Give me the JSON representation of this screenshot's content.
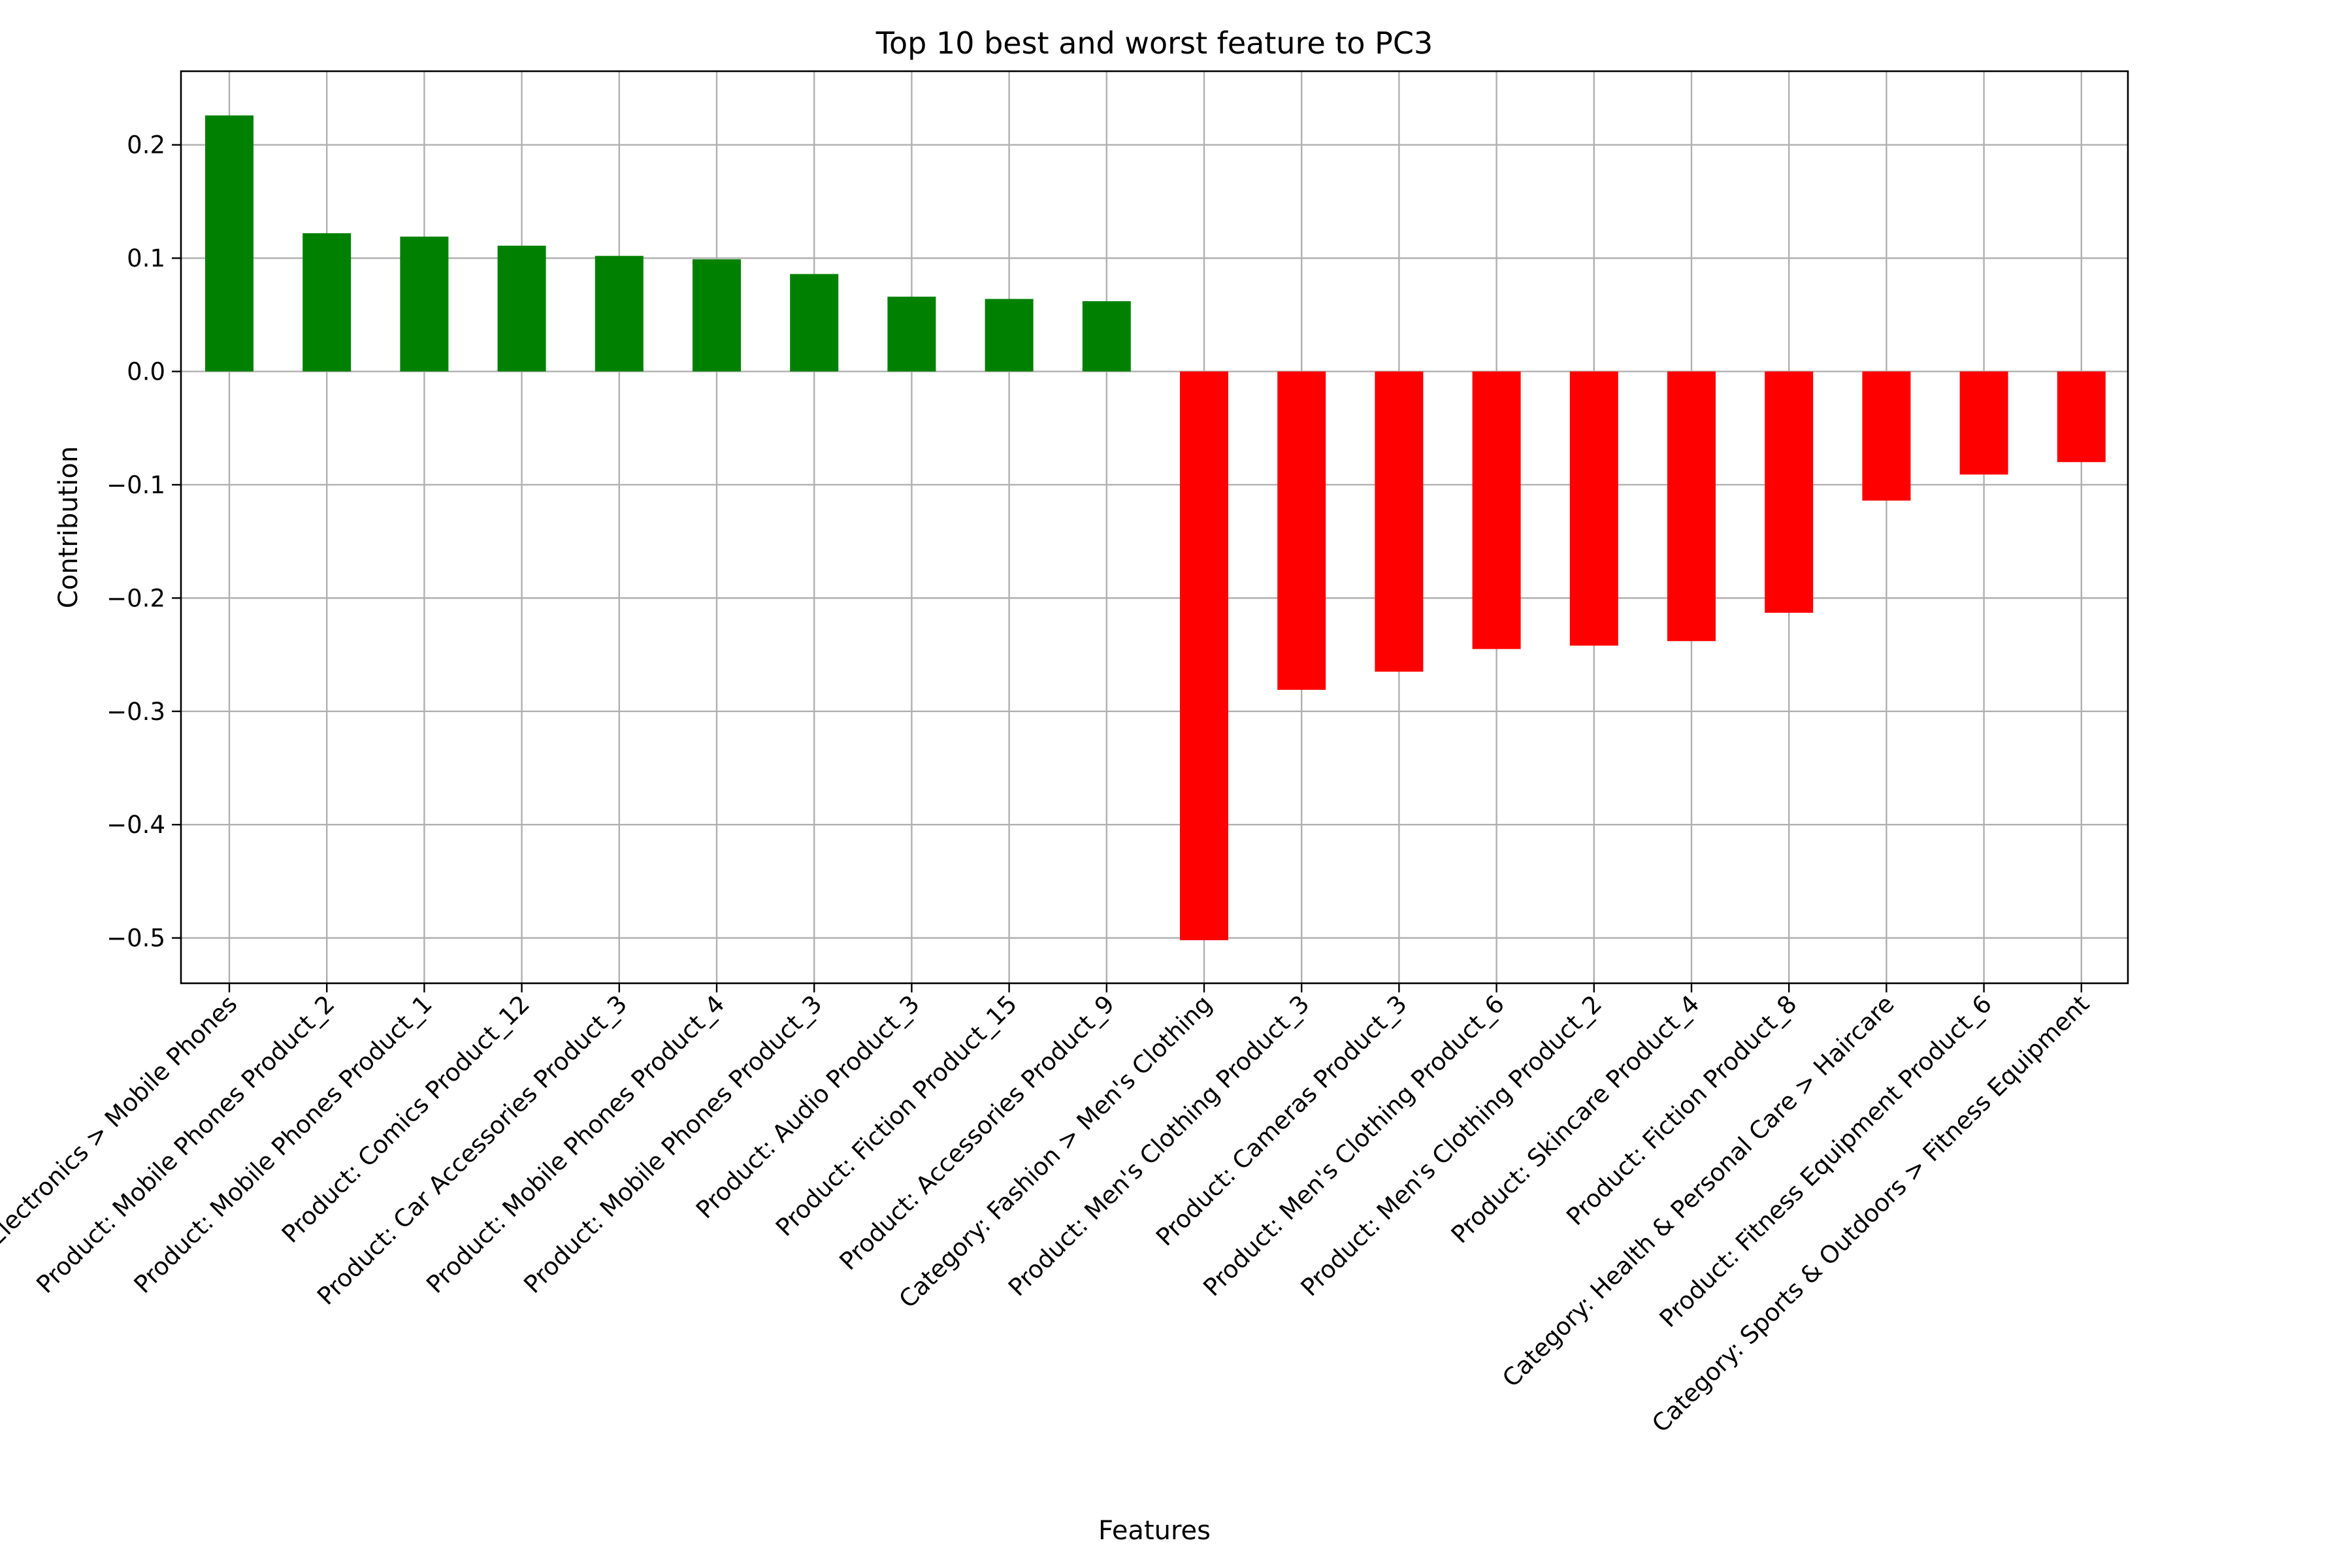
{
  "chart_data": {
    "type": "bar",
    "title": "Top 10 best and worst feature to PC3",
    "xlabel": "Features",
    "ylabel": "Contribution",
    "ylim": [
      -0.54,
      0.265
    ],
    "yticks": [
      0.2,
      0.1,
      0.0,
      -0.1,
      -0.2,
      -0.3,
      -0.4,
      -0.5
    ],
    "ytick_labels": [
      "0.2",
      "0.1",
      "0.0",
      "−0.1",
      "−0.2",
      "−0.3",
      "−0.4",
      "−0.5"
    ],
    "grid": true,
    "colors": {
      "positive": "#008000",
      "negative": "#ff0000"
    },
    "categories": [
      "Category: Electronics > Mobile Phones",
      "Product: Mobile Phones Product_2",
      "Product: Mobile Phones Product_1",
      "Product: Comics Product_12",
      "Product: Car Accessories Product_3",
      "Product: Mobile Phones Product_4",
      "Product: Mobile Phones Product_3",
      "Product: Audio Product_3",
      "Product: Fiction Product_15",
      "Product: Accessories Product_9",
      "Category: Fashion > Men's Clothing",
      "Product: Men's Clothing Product_3",
      "Product: Cameras Product_3",
      "Product: Men's Clothing Product_6",
      "Product: Men's Clothing Product_2",
      "Product: Skincare Product_4",
      "Product: Fiction Product_8",
      "Category: Health & Personal Care > Haircare",
      "Product: Fitness Equipment Product_6",
      "Category: Sports & Outdoors > Fitness Equipment"
    ],
    "values": [
      0.226,
      0.122,
      0.119,
      0.111,
      0.102,
      0.099,
      0.086,
      0.066,
      0.064,
      0.062,
      -0.502,
      -0.281,
      -0.265,
      -0.245,
      -0.242,
      -0.238,
      -0.213,
      -0.114,
      -0.091,
      -0.08
    ]
  }
}
